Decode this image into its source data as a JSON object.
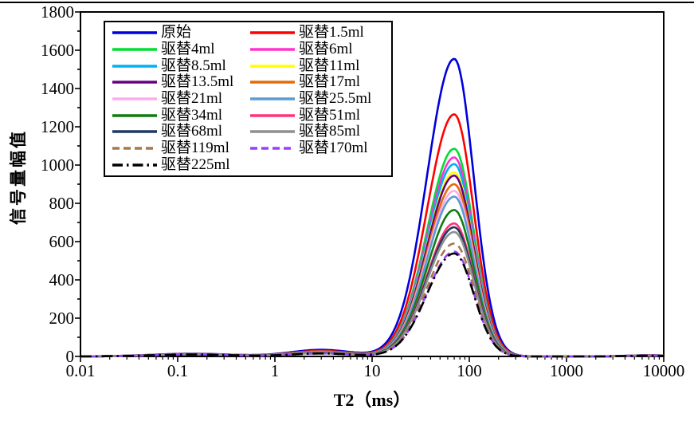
{
  "page": {
    "background": "#ffffff",
    "top_border_color": "#000000"
  },
  "chart_data": {
    "type": "line",
    "title": "",
    "x_axis": {
      "label": "T2（ms）",
      "scale": "log",
      "min": 0.01,
      "max": 10000,
      "tick_labels": [
        "0.01",
        "0.1",
        "1",
        "10",
        "100",
        "1000",
        "10000"
      ]
    },
    "y_axis": {
      "label": "信号量幅值",
      "min": 0,
      "max": 1800,
      "major_step": 200,
      "minor_step": 100,
      "tick_labels": [
        "0",
        "200",
        "400",
        "600",
        "800",
        "1000",
        "1200",
        "1400",
        "1600",
        "1800"
      ]
    },
    "legend": {
      "position": "top-left",
      "columns": 2,
      "border_color": "#000000"
    },
    "main_peak": {
      "center_ms": 70,
      "span_ms": [
        9,
        300
      ],
      "sigma_left_decades": 0.28,
      "sigma_right_decades": 0.2
    },
    "minor_peaks": [
      {
        "center_ms": 0.14,
        "base_amplitude": 8,
        "amplitude_per_peak_unit": 0.004,
        "sigma_decades": 0.42
      },
      {
        "center_ms": 3.0,
        "base_amplitude": 5,
        "amplitude_per_peak_unit": 0.019,
        "sigma_decades": 0.32
      },
      {
        "center_ms": 7000,
        "base_amplitude": 3,
        "amplitude_per_peak_unit": 0.002,
        "sigma_decades": 0.22
      }
    ],
    "series": [
      {
        "label": "原始",
        "color": "#0000DC",
        "line_style": "solid",
        "peak_value": 1555
      },
      {
        "label": "驱替1.5ml",
        "color": "#FF0000",
        "line_style": "solid",
        "peak_value": 1265
      },
      {
        "label": "驱替4ml",
        "color": "#00DD33",
        "line_style": "solid",
        "peak_value": 1085
      },
      {
        "label": "驱替6ml",
        "color": "#FF33CC",
        "line_style": "solid",
        "peak_value": 1040
      },
      {
        "label": "驱替8.5ml",
        "color": "#00B0F0",
        "line_style": "solid",
        "peak_value": 1005
      },
      {
        "label": "驱替11ml",
        "color": "#FFFF00",
        "line_style": "solid",
        "peak_value": 962
      },
      {
        "label": "驱替13.5ml",
        "color": "#660080",
        "line_style": "solid",
        "peak_value": 945
      },
      {
        "label": "驱替17ml",
        "color": "#E36C09",
        "line_style": "solid",
        "peak_value": 900
      },
      {
        "label": "驱替21ml",
        "color": "#FFABEB",
        "line_style": "solid",
        "peak_value": 865
      },
      {
        "label": "驱替25.5ml",
        "color": "#5B9BD5",
        "line_style": "solid",
        "peak_value": 835
      },
      {
        "label": "驱替34ml",
        "color": "#107C10",
        "line_style": "solid",
        "peak_value": 765
      },
      {
        "label": "驱替51ml",
        "color": "#FF3377",
        "line_style": "solid",
        "peak_value": 695
      },
      {
        "label": "驱替68ml",
        "color": "#1F3864",
        "line_style": "solid",
        "peak_value": 675
      },
      {
        "label": "驱替85ml",
        "color": "#8F8F8F",
        "line_style": "solid",
        "peak_value": 650
      },
      {
        "label": "驱替119ml",
        "color": "#A6784E",
        "line_style": "dashed",
        "peak_value": 590
      },
      {
        "label": "驱替170ml",
        "color": "#9940FF",
        "line_style": "dashed",
        "peak_value": 548
      },
      {
        "label": "驱替225ml",
        "color": "#000000",
        "line_style": "dash-dot",
        "peak_value": 538
      }
    ]
  }
}
